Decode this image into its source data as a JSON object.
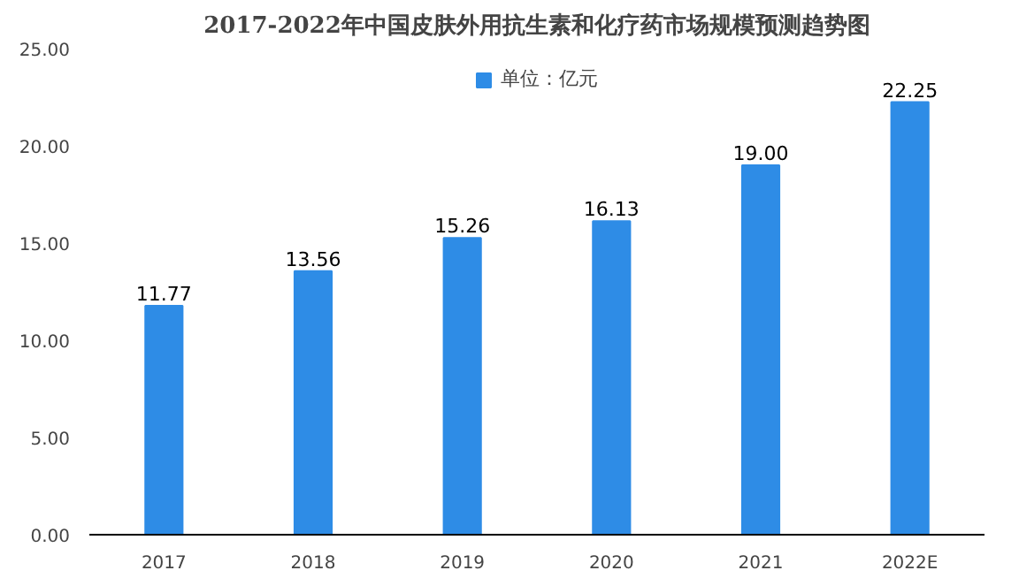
{
  "chart_data": {
    "type": "bar",
    "title": "2017-2022年中国皮肤外用抗生素和化疗药市场规模预测趋势图",
    "categories": [
      "2017",
      "2018",
      "2019",
      "2020",
      "2021",
      "2022E"
    ],
    "series": [
      {
        "name": "单位：亿元",
        "color": "#2e8ce6",
        "values": [
          11.77,
          13.56,
          15.26,
          16.13,
          19.0,
          22.25
        ]
      }
    ],
    "value_labels": [
      "11.77",
      "13.56",
      "15.26",
      "16.13",
      "19.00",
      "22.25"
    ],
    "ylim": [
      0,
      25
    ],
    "yticks": [
      {
        "value": 0,
        "label": "0.00"
      },
      {
        "value": 5,
        "label": "5.00"
      },
      {
        "value": 10,
        "label": "10.00"
      },
      {
        "value": 15,
        "label": "15.00"
      },
      {
        "value": 20,
        "label": "20.00"
      },
      {
        "value": 25,
        "label": "25.00"
      }
    ],
    "legend": "top"
  }
}
